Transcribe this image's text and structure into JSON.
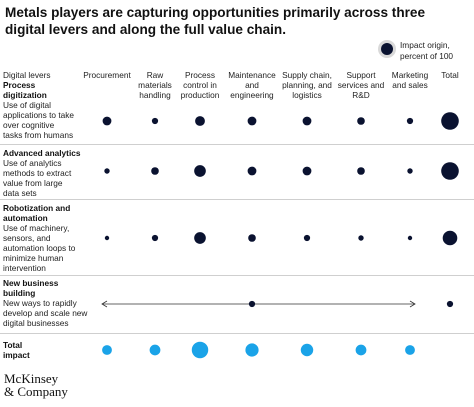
{
  "title": "Metals players are capturing opportunities primarily across three digital levers and along the full value chain.",
  "legend": {
    "label_line1": "Impact origin,",
    "label_line2": "percent of 100"
  },
  "header": {
    "levers_label": "Digital levers"
  },
  "columns": [
    {
      "lines": [
        "Procurement"
      ]
    },
    {
      "lines": [
        "Raw",
        "materials",
        "handling"
      ]
    },
    {
      "lines": [
        "Process",
        "control in",
        "production"
      ]
    },
    {
      "lines": [
        "Maintenance",
        "and",
        "engineering"
      ]
    },
    {
      "lines": [
        "Supply chain,",
        "planning, and",
        "logistics"
      ]
    },
    {
      "lines": [
        "Support",
        "services and",
        "R&D"
      ]
    },
    {
      "lines": [
        "Marketing",
        "and sales"
      ]
    },
    {
      "lines": [
        "Total"
      ]
    }
  ],
  "rows": [
    {
      "title_lines": [
        "Process",
        "digitization"
      ],
      "desc_lines": [
        "Use of digital",
        "applications to take",
        "over cognitive",
        "tasks from humans"
      ]
    },
    {
      "title_lines": [
        "Advanced analytics"
      ],
      "desc_lines": [
        "Use of analytics",
        "methods to extract",
        "value from large",
        "data sets"
      ]
    },
    {
      "title_lines": [
        "Robotization and",
        "automation"
      ],
      "desc_lines": [
        "Use of machinery,",
        "sensors, and",
        "automation loops to",
        "minimize human",
        "intervention"
      ]
    },
    {
      "title_lines": [
        "New business",
        "building"
      ],
      "desc_lines": [
        "New ways to rapidly",
        "develop and scale new",
        "digital businesses"
      ]
    }
  ],
  "total_row": {
    "title_lines": [
      "Total",
      "impact"
    ]
  },
  "logo": {
    "line1": "McKinsey",
    "line2": "& Company"
  },
  "colors": {
    "dot": "#0a1230",
    "total_dot": "#1aa3e8",
    "arrow": "#333333",
    "legend_ring": "#d9d9d9"
  },
  "chart_data": {
    "type": "bubble-matrix",
    "measure": "Impact origin, percent of 100 (relative bubble size)",
    "columns": [
      "Procurement",
      "Raw materials handling",
      "Process control in production",
      "Maintenance and engineering",
      "Supply chain, planning, and logistics",
      "Support services and R&D",
      "Marketing and sales",
      "Total"
    ],
    "rows": [
      "Process digitization",
      "Advanced analytics",
      "Robotization and automation",
      "New business building",
      "Total impact"
    ],
    "values": [
      [
        4,
        2,
        5,
        4,
        4,
        3,
        2,
        16
      ],
      [
        1.5,
        3,
        7,
        4,
        4,
        3,
        1.5,
        16
      ],
      [
        1,
        2,
        7,
        3,
        2,
        1.5,
        1,
        11
      ],
      [
        null,
        null,
        null,
        2,
        null,
        null,
        null,
        2
      ],
      [
        5,
        6,
        14,
        9,
        8,
        6,
        5,
        null
      ]
    ],
    "spans": [
      {
        "row": "New business building",
        "from": "Procurement",
        "to": "Marketing and sales",
        "arrow": "both"
      }
    ]
  }
}
